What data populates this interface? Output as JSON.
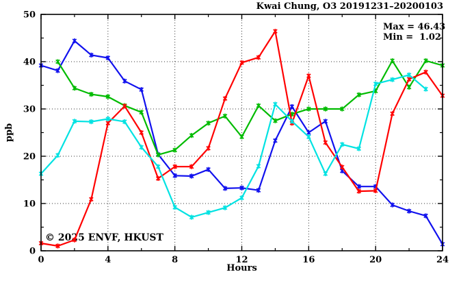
{
  "title": "Kwai Chung, O3 20191231–20200103",
  "annotation": {
    "max_label": "Max = 46.43",
    "min_label": "Min =  1.02"
  },
  "watermark": "© 2025 ENVF, HKUST",
  "colors": {
    "axis": "#000000",
    "grid": "#000000",
    "watermark": "#e9d4d4",
    "background": "#ffffff"
  },
  "chart_data": {
    "type": "line",
    "title": "Kwai Chung, O3 20191231–20200103",
    "xlabel": "Hours",
    "ylabel": "ppb",
    "xlim": [
      0,
      24
    ],
    "ylim": [
      0,
      50
    ],
    "x_major_ticks": [
      0,
      4,
      8,
      12,
      16,
      20,
      24
    ],
    "x_minor_ticks": [
      2,
      6,
      10,
      14,
      18,
      22
    ],
    "y_major_ticks": [
      0,
      10,
      20,
      30,
      40,
      50
    ],
    "y_minor_ticks": [
      5,
      15,
      25,
      35,
      45
    ],
    "grid": "dotted lines at major ticks, full box frame, inward ticks",
    "legend_position": "none",
    "marker": "asterisk-star",
    "stat_max": 46.43,
    "stat_min": 1.02,
    "x": [
      0,
      1,
      2,
      3,
      4,
      5,
      6,
      7,
      8,
      9,
      10,
      11,
      12,
      13,
      14,
      15,
      16,
      17,
      18,
      19,
      20,
      21,
      22,
      23,
      24
    ],
    "series": [
      {
        "name": "series-blue",
        "color": "#1111ee",
        "values": [
          39.2,
          38.1,
          44.4,
          41.4,
          40.8,
          35.9,
          34.1,
          20.4,
          15.9,
          15.8,
          17.2,
          13.2,
          13.3,
          12.8,
          23.3,
          30.5,
          25.0,
          27.4,
          16.9,
          13.6,
          13.6,
          9.7,
          8.4,
          7.4,
          1.4
        ]
      },
      {
        "name": "series-green",
        "color": "#00bb00",
        "values": [
          null,
          40.0,
          34.4,
          33.1,
          32.6,
          30.7,
          29.3,
          20.3,
          21.3,
          24.4,
          27.0,
          28.5,
          24.1,
          30.7,
          27.5,
          28.9,
          30.0,
          30.0,
          30.0,
          33.0,
          33.8,
          40.2,
          34.6,
          40.2,
          39.2
        ]
      },
      {
        "name": "series-red",
        "color": "#ff0000",
        "values": [
          1.6,
          1.02,
          2.3,
          10.9,
          27.0,
          30.6,
          25.0,
          15.3,
          17.8,
          17.8,
          21.7,
          32.2,
          39.8,
          40.9,
          46.43,
          27.0,
          37.0,
          22.9,
          17.7,
          12.6,
          12.7,
          29.0,
          36.3,
          37.8,
          32.8
        ]
      },
      {
        "name": "series-cyan",
        "color": "#00e2e2",
        "values": [
          16.3,
          20.2,
          27.4,
          27.3,
          27.9,
          27.3,
          21.9,
          17.8,
          9.2,
          7.1,
          8.1,
          9.1,
          11.2,
          17.9,
          31.0,
          27.4,
          24.1,
          16.3,
          22.5,
          21.6,
          35.3,
          36.2,
          37.2,
          34.2,
          null
        ]
      }
    ]
  }
}
